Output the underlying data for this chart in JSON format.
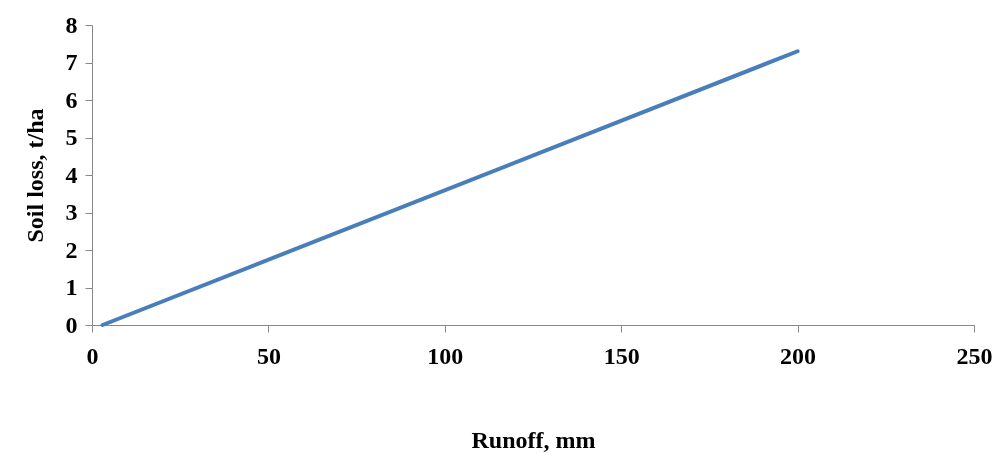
{
  "chart_data": {
    "type": "line",
    "xlabel": "Runoff, mm",
    "ylabel": "Soil loss, t/ha",
    "x": [
      3,
      200
    ],
    "series": [
      {
        "color": "#4a7ebb",
        "values": [
          0,
          7.3
        ]
      }
    ],
    "xlim": [
      0,
      250
    ],
    "xticks": [
      0,
      50,
      100,
      150,
      200,
      250
    ],
    "ylim": [
      0,
      8
    ],
    "yticks": [
      0,
      1,
      2,
      3,
      4,
      5,
      6,
      7,
      8
    ],
    "grid": false,
    "marker": "none",
    "line_style": "solid"
  }
}
